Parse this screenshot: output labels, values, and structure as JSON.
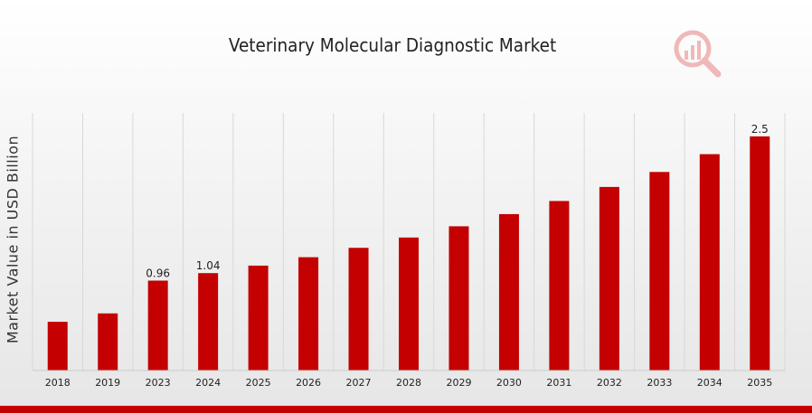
{
  "chart_data": {
    "type": "bar",
    "title": "Veterinary Molecular Diagnostic Market",
    "xlabel": "",
    "ylabel": "Market Value in USD Billion",
    "categories": [
      "2018",
      "2019",
      "2023",
      "2024",
      "2025",
      "2026",
      "2027",
      "2028",
      "2029",
      "2030",
      "2031",
      "2032",
      "2033",
      "2034",
      "2035"
    ],
    "values": [
      0.52,
      0.61,
      0.96,
      1.04,
      1.12,
      1.21,
      1.31,
      1.42,
      1.54,
      1.67,
      1.81,
      1.96,
      2.12,
      2.31,
      2.5
    ],
    "data_labels": {
      "2023": "0.96",
      "2024": "1.04",
      "2035": "2.5"
    },
    "ylim": [
      0,
      2.75
    ],
    "grid": "vertical",
    "bar_color": "#c40000"
  },
  "colors": {
    "accent": "#c40000",
    "grid": "#d8d8d8"
  },
  "logo": {
    "icon": "chart-magnifier-logo-icon"
  }
}
